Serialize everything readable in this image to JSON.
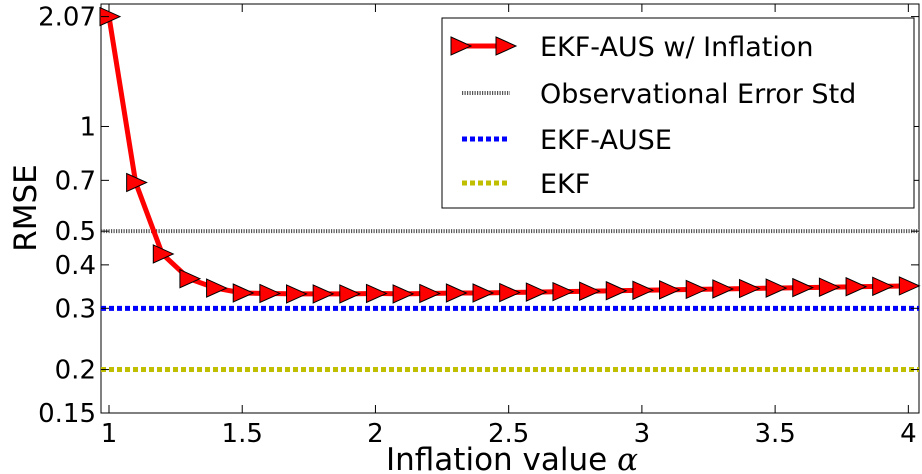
{
  "chart_data": {
    "type": "line",
    "xlabel": "Inflation value",
    "xlabel_symbol": "α",
    "ylabel": "RMSE",
    "xlim": [
      0.97,
      4.04
    ],
    "ylim": [
      0.15,
      2.25
    ],
    "yscale": "log",
    "grid": false,
    "legend_position": "top-right",
    "x_ticks": [
      1,
      1.5,
      2,
      2.5,
      3,
      3.5,
      4
    ],
    "x_tick_labels": [
      "1",
      "1.5",
      "2",
      "2.5",
      "3",
      "3.5",
      "4"
    ],
    "y_ticks": [
      0.15,
      0.2,
      0.3,
      0.4,
      0.5,
      0.7,
      1,
      2.07
    ],
    "y_tick_labels": [
      "0.15",
      "0.2",
      "0.3",
      "0.4",
      "0.5",
      "0.7",
      "1",
      "2.07"
    ],
    "x": [
      1.0,
      1.1,
      1.2,
      1.3,
      1.4,
      1.5,
      1.6,
      1.7,
      1.8,
      1.9,
      2.0,
      2.1,
      2.2,
      2.3,
      2.4,
      2.5,
      2.6,
      2.7,
      2.8,
      2.9,
      3.0,
      3.1,
      3.2,
      3.3,
      3.4,
      3.5,
      3.6,
      3.7,
      3.8,
      3.9,
      4.0
    ],
    "series": [
      {
        "name": "EKF-AUS w/ Inflation",
        "color": "#ff0000",
        "marker": "triangle-right",
        "values": [
          2.07,
          0.69,
          0.43,
          0.365,
          0.343,
          0.332,
          0.331,
          0.33,
          0.33,
          0.33,
          0.331,
          0.33,
          0.331,
          0.332,
          0.332,
          0.333,
          0.334,
          0.335,
          0.336,
          0.337,
          0.338,
          0.339,
          0.34,
          0.341,
          0.342,
          0.343,
          0.344,
          0.345,
          0.346,
          0.347,
          0.348
        ]
      },
      {
        "name": "Observational Error Std",
        "color": "#555555",
        "style": "dotted-fine",
        "constant": 0.5
      },
      {
        "name": "EKF-AUSE",
        "color": "#0000ff",
        "style": "dotted-thick",
        "constant": 0.3
      },
      {
        "name": "EKF",
        "color": "#bfbf00",
        "style": "dotted-thick",
        "constant": 0.2
      }
    ]
  }
}
